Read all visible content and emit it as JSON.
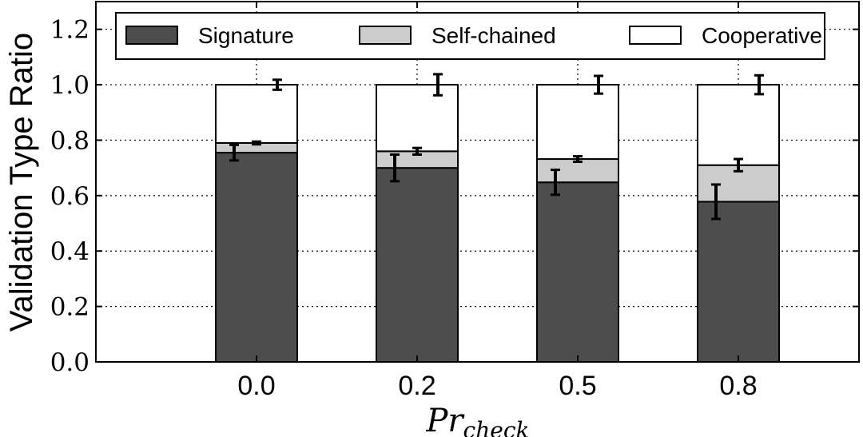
{
  "chart_data": {
    "type": "bar",
    "stacked": true,
    "categories": [
      "0.0",
      "0.2",
      "0.5",
      "0.8"
    ],
    "ylabel": "Validation Type Ratio",
    "xlabel_main": "Pr",
    "xlabel_sub": "check",
    "ylim": [
      0,
      1.3
    ],
    "yticks": [
      "0.0",
      "0.2",
      "0.4",
      "0.6",
      "0.8",
      "1.0",
      "1.2"
    ],
    "ytick_values": [
      0,
      0.2,
      0.4,
      0.6,
      0.8,
      1.0,
      1.2
    ],
    "grid": true,
    "legend_position": "top",
    "series": [
      {
        "name": "Signature",
        "color": "#4d4d4d",
        "values": [
          0.755,
          0.7,
          0.648,
          0.578
        ],
        "cumulative": [
          0.755,
          0.7,
          0.648,
          0.578
        ],
        "error": [
          0.028,
          0.048,
          0.045,
          0.062
        ]
      },
      {
        "name": "Self-chained",
        "color": "#cccccc",
        "values": [
          0.035,
          0.06,
          0.084,
          0.132
        ],
        "cumulative": [
          0.79,
          0.76,
          0.732,
          0.71
        ],
        "error": [
          0.005,
          0.012,
          0.01,
          0.022
        ]
      },
      {
        "name": "Cooperative",
        "color": "#ffffff",
        "values": [
          0.21,
          0.24,
          0.268,
          0.29
        ],
        "cumulative": [
          1.0,
          1.0,
          1.0,
          1.0
        ],
        "error": [
          0.018,
          0.038,
          0.032,
          0.034
        ]
      }
    ]
  }
}
